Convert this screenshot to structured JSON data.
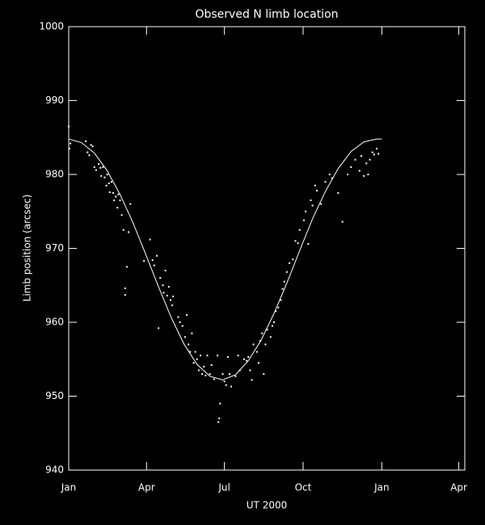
{
  "chart_data": {
    "type": "scatter",
    "title": "Observed N limb location",
    "x_label": "UT 2000",
    "y_label": "Limb position (arcsec)",
    "xlim": [
      0,
      463
    ],
    "xticks": [
      {
        "value": 0,
        "label": "Jan"
      },
      {
        "value": 91,
        "label": "Apr"
      },
      {
        "value": 182,
        "label": "Jul"
      },
      {
        "value": 274,
        "label": "Oct"
      },
      {
        "value": 366,
        "label": "Jan"
      },
      {
        "value": 456,
        "label": "Apr"
      }
    ],
    "ylim": [
      940,
      1000
    ],
    "yticks": [
      940,
      950,
      960,
      970,
      980,
      990,
      1000
    ],
    "grid": false,
    "series": [
      {
        "type": "scatter",
        "color": "#ffffff",
        "x": [
          0,
          1,
          2,
          20,
          22,
          24,
          26,
          28,
          30,
          32,
          35,
          37,
          38,
          40,
          42,
          44,
          45,
          47,
          48,
          50,
          52,
          53,
          55,
          57,
          58,
          60,
          62,
          64,
          66,
          66,
          68,
          70,
          72,
          88,
          95,
          98,
          100,
          103,
          105,
          107,
          110,
          111,
          113,
          115,
          117,
          119,
          121,
          122,
          128,
          130,
          133,
          136,
          138,
          140,
          142,
          144,
          146,
          148,
          150,
          152,
          154,
          156,
          158,
          160,
          162,
          165,
          167,
          170,
          174,
          175,
          176,
          177,
          180,
          182,
          184,
          186,
          188,
          190,
          195,
          198,
          200,
          205,
          208,
          210,
          212,
          214,
          216,
          220,
          222,
          224,
          226,
          228,
          230,
          232,
          236,
          238,
          240,
          242,
          245,
          248,
          250,
          252,
          255,
          258,
          262,
          265,
          268,
          270,
          275,
          277,
          280,
          283,
          285,
          288,
          290,
          295,
          300,
          305,
          308,
          315,
          320,
          326,
          330,
          335,
          340,
          342,
          345,
          348,
          350,
          352,
          355,
          357,
          360,
          362
        ],
        "values": [
          986.5,
          983.5,
          984.2,
          984.5,
          983,
          982.6,
          984,
          983.8,
          981,
          980.6,
          981.4,
          980.9,
          979.8,
          981,
          979.6,
          978.5,
          980,
          978.8,
          977.6,
          979,
          977.5,
          976.5,
          977,
          975.5,
          977.3,
          976.5,
          974.5,
          972.5,
          964.6,
          963.7,
          967.5,
          972.2,
          976,
          968.3,
          971.2,
          968.4,
          967.7,
          969,
          959.2,
          966,
          965,
          964,
          967,
          963.6,
          964.8,
          963,
          962.3,
          963.5,
          960.7,
          960,
          959.5,
          958,
          961,
          957,
          956,
          958.5,
          954.5,
          956,
          955,
          953.5,
          955.5,
          953,
          954,
          952.8,
          955.5,
          953,
          954.2,
          952.3,
          955.5,
          946.5,
          947,
          949,
          953,
          952,
          951.5,
          955.3,
          953,
          951.3,
          952.7,
          955.5,
          953.5,
          955,
          954.8,
          955.3,
          953.5,
          952.2,
          957,
          956,
          954.5,
          957.5,
          958.5,
          953,
          957,
          959,
          958,
          959.5,
          960,
          961.5,
          962,
          963,
          964.5,
          965.5,
          966.8,
          968,
          968.5,
          971,
          970.7,
          972.5,
          973.8,
          975,
          970.6,
          976.5,
          975.8,
          978.5,
          977.8,
          976,
          979,
          980,
          979.5,
          977.5,
          973.6,
          980,
          981,
          982,
          980.5,
          982.5,
          979.8,
          981.5,
          980,
          982,
          983,
          982.7,
          983.5,
          982.8
        ]
      },
      {
        "type": "line",
        "color": "#ffffff",
        "x": [
          0,
          15,
          30,
          45,
          60,
          75,
          90,
          105,
          120,
          135,
          150,
          165,
          180,
          195,
          210,
          225,
          240,
          255,
          270,
          285,
          300,
          315,
          330,
          345,
          360,
          366
        ],
        "values": [
          984.8,
          984.3,
          982.9,
          980.5,
          977.3,
          973.5,
          969.2,
          964.8,
          960.6,
          957.0,
          954.3,
          952.7,
          952.2,
          952.9,
          954.8,
          957.6,
          961.2,
          965.3,
          969.7,
          974.0,
          977.7,
          980.8,
          983.1,
          984.4,
          984.8,
          984.8
        ]
      }
    ]
  }
}
